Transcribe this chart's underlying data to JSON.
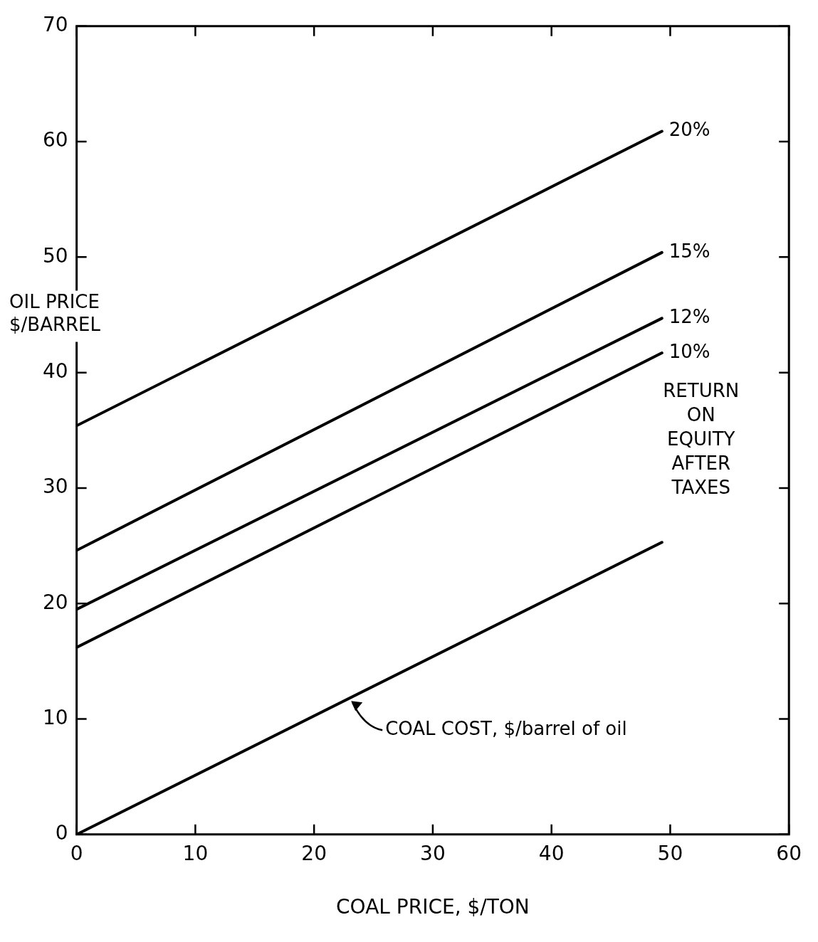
{
  "chart_data": {
    "type": "line",
    "xlabel": "COAL PRICE, $/TON",
    "ylabel": "OIL PRICE\n$/BARREL",
    "xlim": [
      0,
      60
    ],
    "xticks": [
      0,
      10,
      20,
      30,
      40,
      50,
      60
    ],
    "ylim": [
      0,
      70
    ],
    "yticks": [
      0,
      10,
      20,
      30,
      40,
      50,
      60,
      70
    ],
    "grid": false,
    "legend": false,
    "marker": "none",
    "line_style": "solid",
    "x": [
      0,
      49.3
    ],
    "series": [
      {
        "name": "20%",
        "color": "#000000",
        "values": [
          35.4,
          60.9
        ]
      },
      {
        "name": "15%",
        "color": "#000000",
        "values": [
          24.6,
          50.4
        ]
      },
      {
        "name": "12%",
        "color": "#000000",
        "values": [
          19.5,
          44.7
        ]
      },
      {
        "name": "10%",
        "color": "#000000",
        "values": [
          16.2,
          41.7
        ]
      },
      {
        "color": "#000000",
        "values": [
          0,
          25.3
        ]
      }
    ],
    "annotations": [
      "RETURN\nON\nEQUITY\nAFTER\nTAXES",
      {
        "text": "COAL COST, $/barrel of oil",
        "x": 23,
        "y": 11.8
      }
    ]
  }
}
